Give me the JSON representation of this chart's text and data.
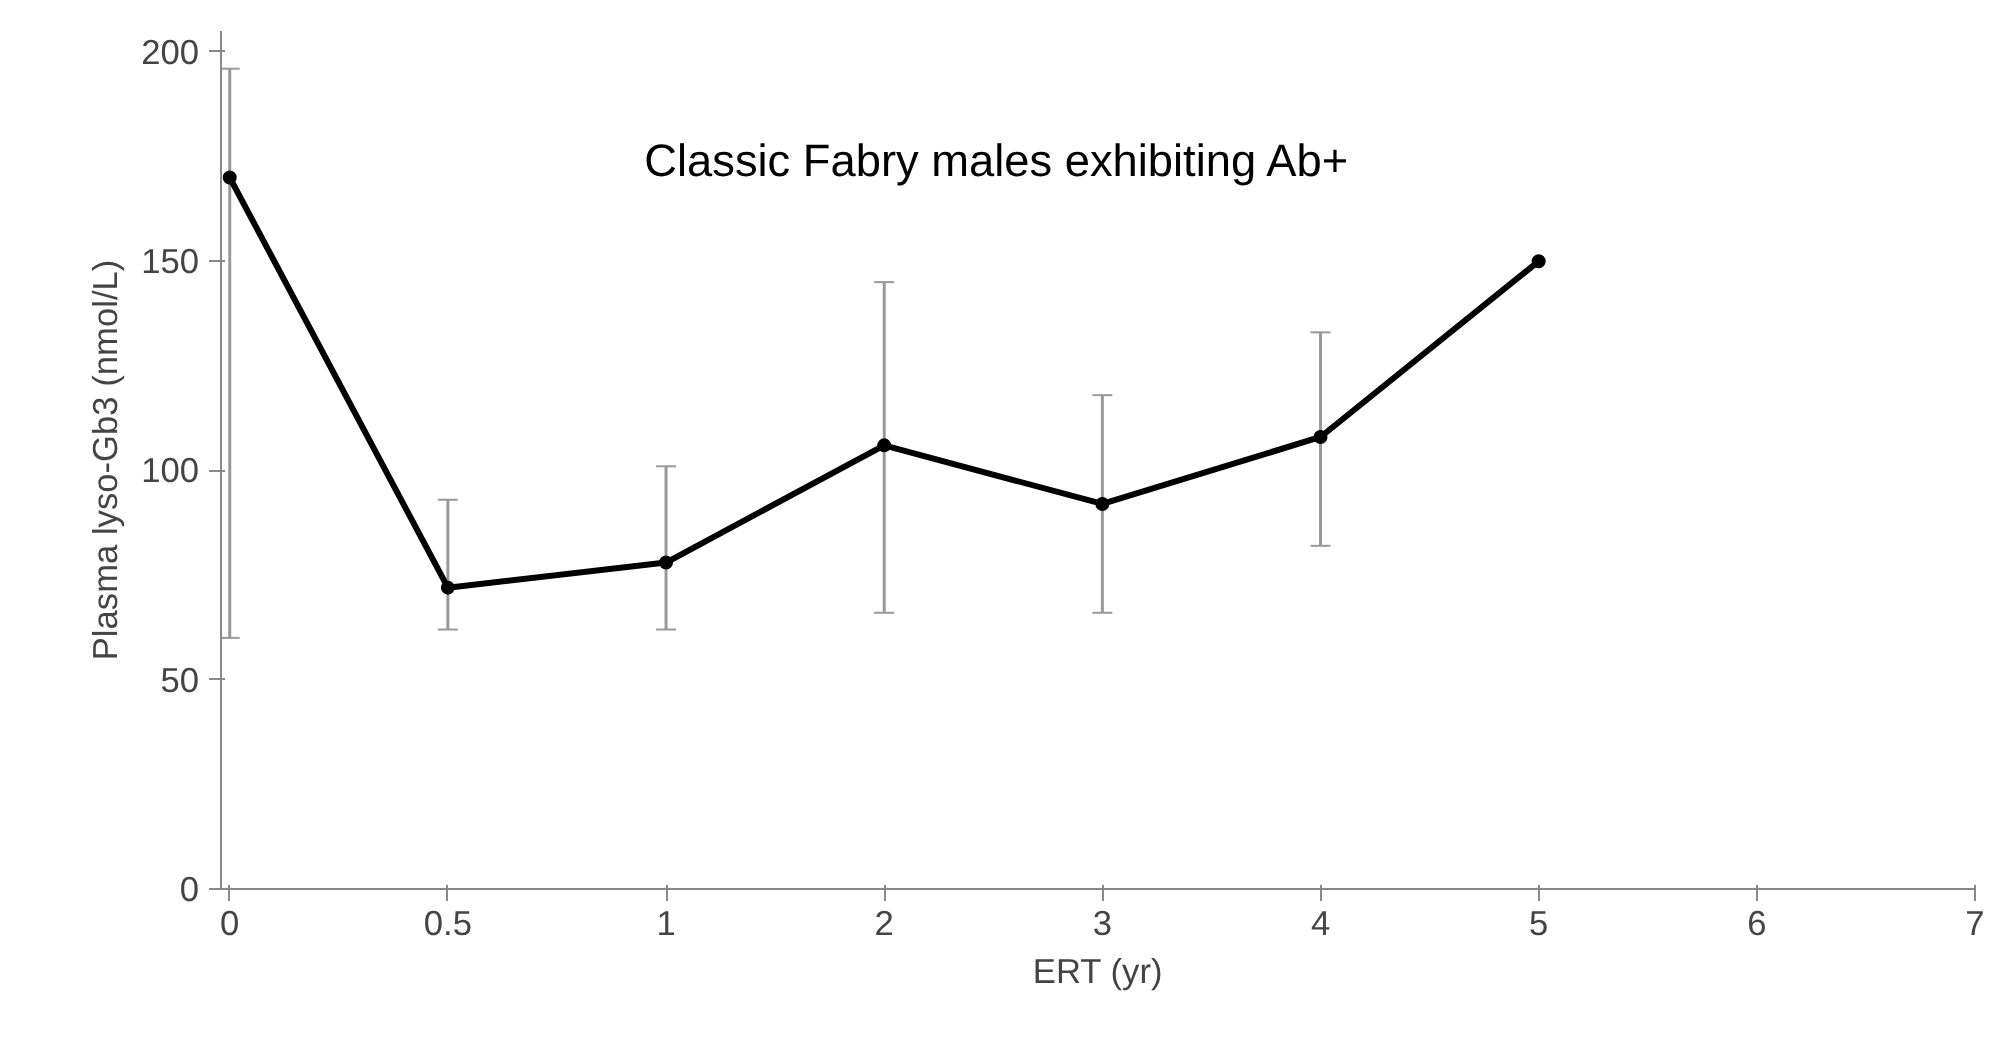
{
  "chart_data": {
    "type": "line",
    "xlabel": "ERT (yr)",
    "ylabel": "Plasma lyso-Gb3 (nmol/L)",
    "annotations": [
      "Classic Fabry males exhibiting Ab+"
    ],
    "categories": [
      "0",
      "0.5",
      "1",
      "2",
      "3",
      "4",
      "5",
      "6",
      "7"
    ],
    "series": [
      {
        "color": "#000000",
        "values": [
          170,
          72,
          78,
          106,
          92,
          108,
          150,
          null,
          null
        ],
        "errors": [
          [
            60,
            196
          ],
          [
            62,
            93
          ],
          [
            62,
            101
          ],
          [
            66,
            145
          ],
          [
            66,
            118
          ],
          [
            82,
            133
          ],
          null,
          null,
          null
        ]
      }
    ],
    "ylim": [
      0,
      205
    ],
    "yticks": [
      0,
      50,
      100,
      150,
      200
    ],
    "grid": false,
    "marker": "circle",
    "line_style": "solid"
  }
}
